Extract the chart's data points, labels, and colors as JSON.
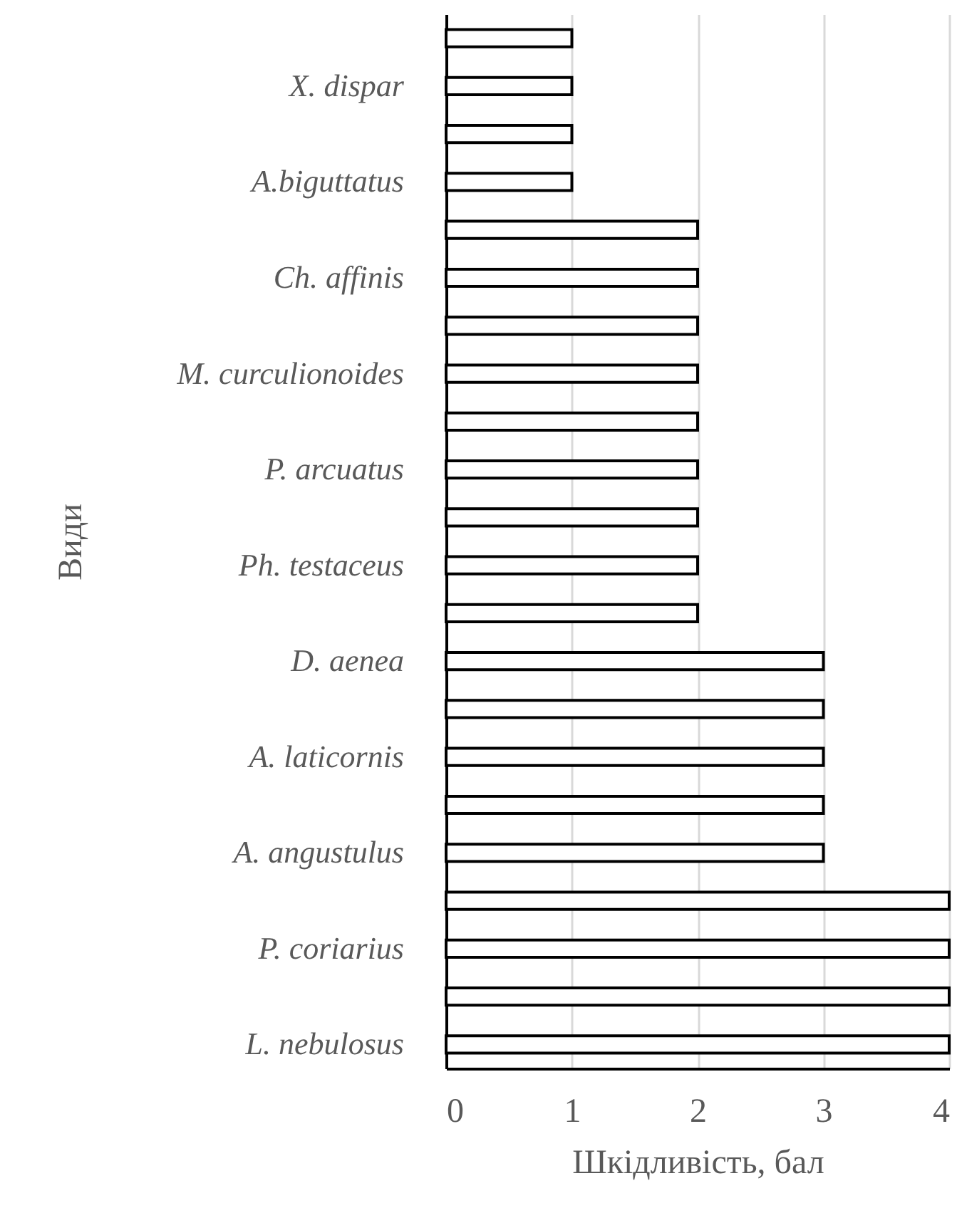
{
  "chart_data": {
    "type": "bar",
    "orientation": "horizontal",
    "xlabel": "Шкідливість, бал",
    "ylabel": "Види",
    "categories": [
      null,
      "X. dispar",
      null,
      "A.biguttatus",
      null,
      "Ch. affinis",
      null,
      "M. curculionoides",
      null,
      "P. arcuatus",
      null,
      "Ph. testaceus",
      null,
      "D. aenea",
      null,
      "A. laticornis",
      null,
      "A.  angustulus",
      null,
      "P. coriarius",
      null,
      "L. nebulosus"
    ],
    "values": [
      1,
      1,
      1,
      1,
      2,
      2,
      2,
      2,
      2,
      2,
      2,
      2,
      2,
      3,
      3,
      3,
      3,
      3,
      4,
      4,
      4,
      4
    ],
    "color": "#ffffff",
    "xlim": [
      0,
      4
    ],
    "xticks": [
      0,
      1,
      2,
      3,
      4
    ],
    "grid": "x"
  }
}
